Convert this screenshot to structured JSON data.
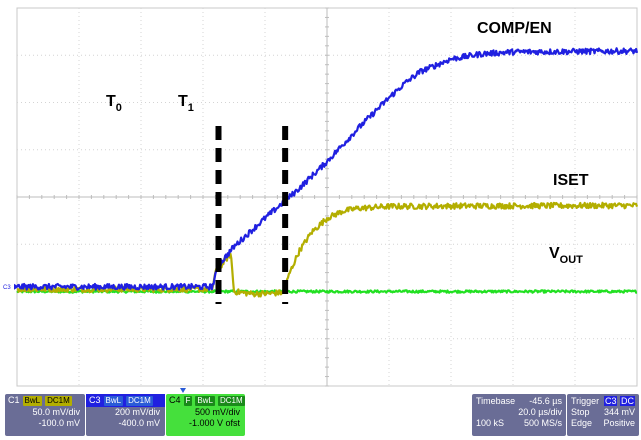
{
  "chart_data": {
    "type": "line",
    "title": "",
    "x_unit": "µs",
    "y_unit": "div",
    "xlim": [
      -100,
      100
    ],
    "ylim": [
      -4,
      4
    ],
    "grid": true,
    "grid_divisions": {
      "x": 10,
      "y": 8
    },
    "series": [
      {
        "name": "COMP/EN",
        "color": "#2020e0",
        "noise": 0.06,
        "points": [
          [
            -100,
            -1.9
          ],
          [
            -60,
            -1.9
          ],
          [
            -37,
            -1.9
          ],
          [
            -35,
            -1.45
          ],
          [
            -30,
            -1.05
          ],
          [
            -20,
            -0.45
          ],
          [
            -10,
            0.12
          ],
          [
            0,
            0.75
          ],
          [
            10,
            1.45
          ],
          [
            20,
            2.1
          ],
          [
            25,
            2.4
          ],
          [
            30,
            2.65
          ],
          [
            40,
            2.92
          ],
          [
            50,
            3.03
          ],
          [
            60,
            3.07
          ],
          [
            80,
            3.08
          ],
          [
            100,
            3.09
          ]
        ]
      },
      {
        "name": "ISET",
        "color": "#b3ae00",
        "noise": 0.06,
        "points": [
          [
            -100,
            -1.95
          ],
          [
            -37,
            -1.95
          ],
          [
            -36,
            -1.6
          ],
          [
            -33,
            -1.35
          ],
          [
            -31,
            -1.2
          ],
          [
            -30,
            -2.0
          ],
          [
            -24,
            -2.05
          ],
          [
            -18,
            -2.04
          ],
          [
            -14,
            -2.02
          ],
          [
            -12,
            -1.6
          ],
          [
            -9,
            -1.15
          ],
          [
            -5,
            -0.75
          ],
          [
            0,
            -0.45
          ],
          [
            5,
            -0.3
          ],
          [
            10,
            -0.24
          ],
          [
            20,
            -0.2
          ],
          [
            40,
            -0.19
          ],
          [
            100,
            -0.18
          ]
        ]
      },
      {
        "name": "V_OUT",
        "color": "#22e022",
        "noise": 0.025,
        "points": [
          [
            -100,
            -2.0
          ],
          [
            100,
            -2.0
          ]
        ]
      }
    ],
    "annotations": [
      {
        "text": "COMP/EN"
      },
      {
        "text": "ISET"
      },
      {
        "text": "V",
        "sub": "OUT"
      },
      {
        "text": "T",
        "sub": "0",
        "at_x": -35
      },
      {
        "text": "T",
        "sub": "1",
        "at_x": -13.5
      }
    ],
    "channel_marker_label": "C3"
  },
  "status_bar": {
    "c1": {
      "label": "C1",
      "tags": [
        "BwL",
        "DC1M"
      ],
      "color": "#b3ae00",
      "scale": "50.0 mV/div",
      "offset": "-100.0 mV"
    },
    "c3": {
      "label": "C3",
      "tags": [
        "BwL",
        "DC1M"
      ],
      "color": "#2020e0",
      "scale": "200 mV/div",
      "offset": "-400.0 mV"
    },
    "c4": {
      "label": "C4",
      "tags": [
        "F",
        "BwL",
        "DC1M"
      ],
      "color": "#45e03c",
      "scale": "500 mV/div",
      "offset": "-1.000 V ofst"
    },
    "timebase": {
      "label": "Timebase",
      "delay": "-45.6 µs",
      "scale": "20.0 µs/div",
      "samples": "100 kS",
      "rate": "500 MS/s"
    },
    "trigger": {
      "label": "Trigger",
      "channel": "C3",
      "coupling": "DC",
      "mode": "Stop",
      "level": "344 mV",
      "type": "Edge",
      "slope": "Positive"
    }
  }
}
